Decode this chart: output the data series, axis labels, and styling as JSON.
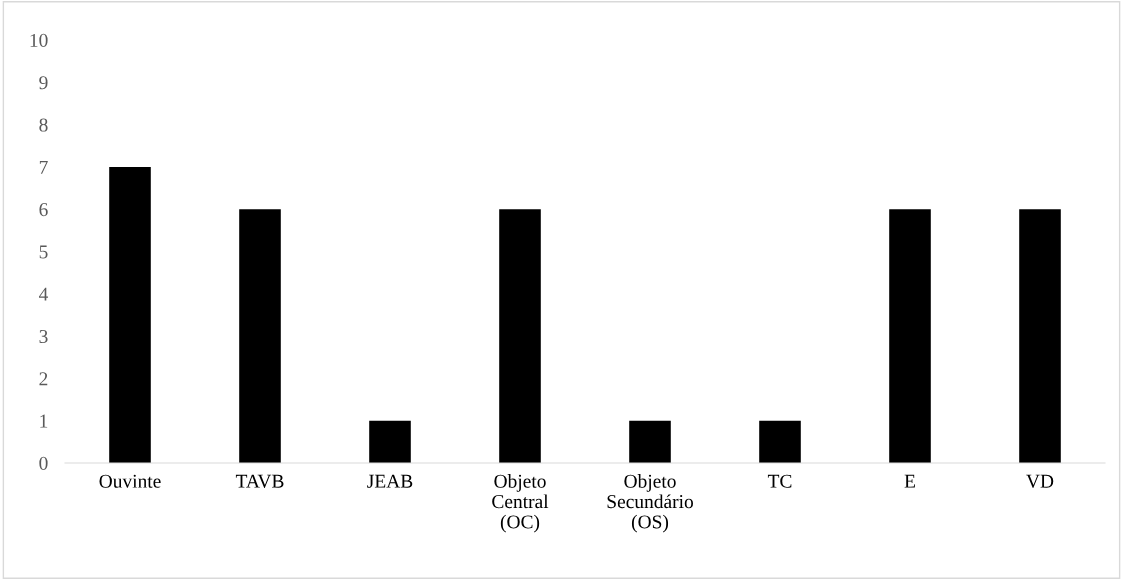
{
  "chart_data": {
    "type": "bar",
    "categories": [
      "Ouvinte",
      "TAVB",
      "JEAB",
      "Objeto\nCentral\n(OC)",
      "Objeto\nSecundário\n(OS)",
      "TC",
      "E",
      "VD"
    ],
    "values": [
      7,
      6,
      1,
      6,
      1,
      1,
      6,
      6
    ],
    "color": "#000000",
    "ylim": [
      0,
      10
    ],
    "yticks": [
      0,
      1,
      2,
      3,
      4,
      5,
      6,
      7,
      8,
      9,
      10
    ],
    "grid": false,
    "legend": false
  }
}
